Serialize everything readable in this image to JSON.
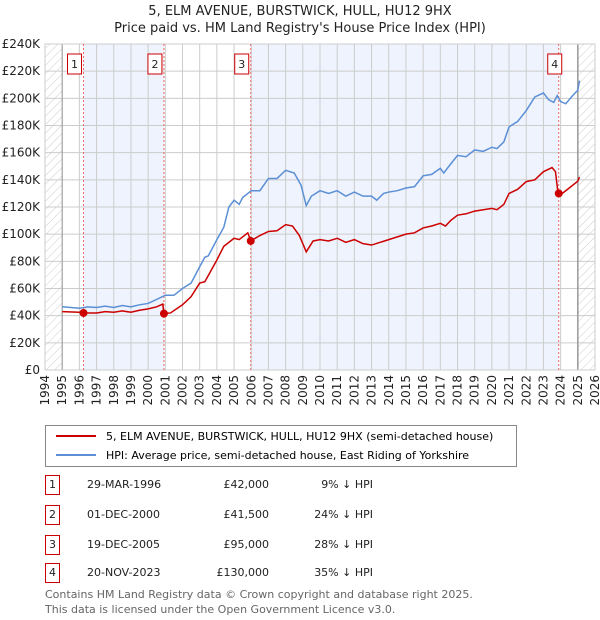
{
  "title": "5, ELM AVENUE, BURSTWICK, HULL, HU12 9HX",
  "subtitle": "Price paid vs. HM Land Registry's House Price Index (HPI)",
  "chart_data": {
    "type": "line",
    "title": "5, ELM AVENUE, BURSTWICK, HULL, HU12 9HX — Price paid vs. HM Land Registry's House Price Index (HPI)",
    "xlim": [
      1994,
      2026
    ],
    "ylim": [
      0,
      240000
    ],
    "x_ticks": [
      "1994",
      "1995",
      "1996",
      "1997",
      "1998",
      "1999",
      "2000",
      "2001",
      "2002",
      "2003",
      "2004",
      "2005",
      "2006",
      "2007",
      "2008",
      "2009",
      "2010",
      "2011",
      "2012",
      "2013",
      "2014",
      "2015",
      "2016",
      "2017",
      "2018",
      "2019",
      "2020",
      "2021",
      "2022",
      "2023",
      "2024",
      "2025",
      "2026"
    ],
    "y_ticks": [
      "£0",
      "£20K",
      "£40K",
      "£60K",
      "£80K",
      "£100K",
      "£120K",
      "£140K",
      "£160K",
      "£180K",
      "£200K",
      "£220K",
      "£240K"
    ],
    "grid": true,
    "data_range": [
      1995,
      2025.1
    ],
    "series": [
      {
        "name": "5, ELM AVENUE, BURSTWICK, HULL, HU12 9HX (semi-detached house)",
        "color": "#cc0000",
        "x": [
          1995,
          1996,
          1996.24,
          1997,
          1997.5,
          1998,
          1998.5,
          1999,
          1999.5,
          2000,
          2000.5,
          2000.85,
          2000.92,
          2001.3,
          2002,
          2002.5,
          2003,
          2003.3,
          2004,
          2004.4,
          2005,
          2005.3,
          2005.8,
          2005.97,
          2006.5,
          2007,
          2007.5,
          2008,
          2008.4,
          2008.8,
          2009.2,
          2009.6,
          2010,
          2010.5,
          2011,
          2011.5,
          2012,
          2012.5,
          2013,
          2013.5,
          2014,
          2014.5,
          2015,
          2015.5,
          2016,
          2016.5,
          2017,
          2017.3,
          2017.6,
          2018,
          2018.5,
          2019,
          2019.5,
          2020,
          2020.3,
          2020.7,
          2021,
          2021.5,
          2022,
          2022.5,
          2023,
          2023.5,
          2023.7,
          2023.85,
          2024,
          2024.5,
          2025,
          2025.1
        ],
        "y": [
          43000,
          42500,
          42000,
          42000,
          43000,
          42500,
          43500,
          42500,
          44000,
          45000,
          46500,
          48500,
          41500,
          42000,
          48000,
          54000,
          64000,
          65000,
          81000,
          91000,
          97000,
          96000,
          101000,
          95000,
          99000,
          102000,
          102500,
          107000,
          106000,
          99000,
          87000,
          95000,
          96000,
          95000,
          97000,
          94000,
          96000,
          93000,
          92000,
          94000,
          96000,
          98000,
          100000,
          101000,
          104600,
          106000,
          108000,
          106000,
          110000,
          114000,
          115000,
          117000,
          118000,
          119000,
          118000,
          122000,
          130000,
          133000,
          138700,
          140000,
          146000,
          149000,
          146000,
          130000,
          129000,
          134000,
          139000,
          142000
        ]
      },
      {
        "name": "HPI: Average price, semi-detached house, East Riding of Yorkshire",
        "color": "#5b8fd6",
        "x": [
          1995,
          1996,
          1996.5,
          1997,
          1997.5,
          1998,
          1998.5,
          1999,
          1999.5,
          2000,
          2000.5,
          2001,
          2001.5,
          2002,
          2002.5,
          2003,
          2003.3,
          2003.5,
          2004,
          2004.4,
          2004.7,
          2005,
          2005.3,
          2005.5,
          2006,
          2006.5,
          2007,
          2007.5,
          2008,
          2008.5,
          2008.9,
          2009.2,
          2009.5,
          2010,
          2010.5,
          2011,
          2011.5,
          2012,
          2012.5,
          2013,
          2013.3,
          2013.7,
          2014,
          2014.5,
          2015,
          2015.5,
          2016,
          2016.5,
          2017,
          2017.2,
          2017.5,
          2018,
          2018.5,
          2019,
          2019.5,
          2020,
          2020.3,
          2020.7,
          2021,
          2021.5,
          2022,
          2022.5,
          2023,
          2023.3,
          2023.6,
          2023.8,
          2024,
          2024.3,
          2024.7,
          2025,
          2025.1
        ],
        "y": [
          46600,
          45500,
          46500,
          46000,
          47000,
          46000,
          47500,
          46500,
          48000,
          49000,
          52000,
          55000,
          55000,
          60000,
          64000,
          76000,
          83000,
          84000,
          96000,
          105000,
          120000,
          125000,
          122000,
          127000,
          132000,
          132000,
          141000,
          141000,
          147000,
          145000,
          136000,
          121000,
          128000,
          132000,
          130000,
          132000,
          128000,
          131000,
          128000,
          128000,
          125000,
          130000,
          131000,
          132000,
          134000,
          135000,
          143000,
          144000,
          148500,
          145000,
          150000,
          158000,
          157000,
          162000,
          161000,
          164000,
          163000,
          168000,
          179000,
          183000,
          191000,
          201000,
          204000,
          199000,
          197000,
          202000,
          197600,
          196000,
          202000,
          206000,
          213000
        ]
      }
    ],
    "sales": [
      {
        "label": "1",
        "x": 1996.24,
        "price": 42000,
        "date": "29-MAR-1996",
        "price_text": "£42,000",
        "delta": "9% ↓ HPI"
      },
      {
        "label": "2",
        "x": 2000.92,
        "price": 41500,
        "date": "01-DEC-2000",
        "price_text": "£41,500",
        "delta": "24% ↓ HPI"
      },
      {
        "label": "3",
        "x": 2005.97,
        "price": 95000,
        "date": "19-DEC-2005",
        "price_text": "£95,000",
        "delta": "28% ↓ HPI"
      },
      {
        "label": "4",
        "x": 2023.89,
        "price": 130000,
        "date": "20-NOV-2023",
        "price_text": "£130,000",
        "delta": "35% ↓ HPI"
      }
    ],
    "legend": [
      "5, ELM AVENUE, BURSTWICK, HULL, HU12 9HX (semi-detached house)",
      "HPI: Average price, semi-detached house, East Riding of Yorkshire"
    ],
    "legend_position": "below"
  },
  "footer": [
    "Contains HM Land Registry data © Crown copyright and database right 2025.",
    "This data is licensed under the Open Government Licence v3.0."
  ]
}
